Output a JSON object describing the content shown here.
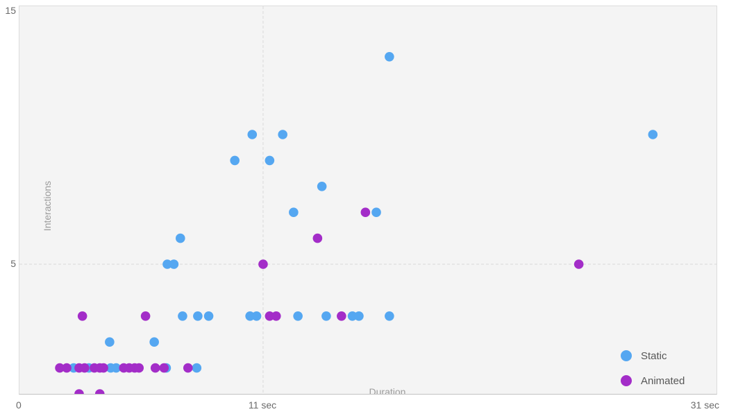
{
  "chart_data": {
    "type": "scatter",
    "xlabel": "Duration",
    "ylabel": "Interactions",
    "x_unit": "sec",
    "xlim": [
      0,
      31
    ],
    "ylim": [
      0,
      15
    ],
    "grid": {
      "style": "dashed",
      "x_values": [
        11
      ],
      "y_values": [
        5
      ]
    },
    "x_ticks": [
      {
        "value": 0,
        "label": "0"
      },
      {
        "value": 11,
        "label": "11 sec"
      },
      {
        "value": 31,
        "label": "31 sec"
      }
    ],
    "y_ticks": [
      {
        "value": 15,
        "label": "15"
      },
      {
        "value": 5,
        "label": "5"
      }
    ],
    "legend": {
      "position": "bottom-right",
      "items": [
        {
          "label": "Static",
          "color": "#55a7f1"
        },
        {
          "label": "Animated",
          "color": "#a32dc8"
        }
      ]
    },
    "series": [
      {
        "name": "Static",
        "color": "#55a7f1",
        "points": [
          [
            16.8,
            13
          ],
          [
            10.5,
            10
          ],
          [
            11.9,
            10
          ],
          [
            28.9,
            10
          ],
          [
            9.7,
            9
          ],
          [
            11.3,
            9
          ],
          [
            13.7,
            8
          ],
          [
            12.4,
            7
          ],
          [
            16.2,
            7
          ],
          [
            7.2,
            6
          ],
          [
            6.6,
            5
          ],
          [
            6.9,
            5
          ],
          [
            7.3,
            3
          ],
          [
            8.0,
            3
          ],
          [
            8.5,
            3
          ],
          [
            10.4,
            3
          ],
          [
            10.7,
            3
          ],
          [
            12.6,
            3
          ],
          [
            13.9,
            3
          ],
          [
            15.1,
            3
          ],
          [
            15.4,
            3
          ],
          [
            16.8,
            3
          ],
          [
            3.95,
            2
          ],
          [
            6.0,
            2
          ],
          [
            2.3,
            1
          ],
          [
            3.0,
            1
          ],
          [
            4.0,
            1
          ],
          [
            4.25,
            1
          ],
          [
            6.55,
            1
          ],
          [
            7.95,
            1
          ]
        ]
      },
      {
        "name": "Animated",
        "color": "#a32dc8",
        "points": [
          [
            15.7,
            7
          ],
          [
            13.5,
            6
          ],
          [
            11.0,
            5
          ],
          [
            25.5,
            5
          ],
          [
            2.7,
            3
          ],
          [
            5.6,
            3
          ],
          [
            11.3,
            3
          ],
          [
            11.6,
            3
          ],
          [
            14.6,
            3
          ],
          [
            1.66,
            1
          ],
          [
            1.98,
            1
          ],
          [
            2.55,
            1
          ],
          [
            2.8,
            1
          ],
          [
            3.25,
            1
          ],
          [
            3.5,
            1
          ],
          [
            3.67,
            1
          ],
          [
            4.6,
            1
          ],
          [
            4.85,
            1
          ],
          [
            5.1,
            1
          ],
          [
            5.3,
            1
          ],
          [
            6.05,
            1
          ],
          [
            6.45,
            1
          ],
          [
            7.55,
            1
          ],
          [
            2.55,
            0
          ],
          [
            3.5,
            0
          ]
        ]
      }
    ]
  },
  "colors": {
    "plot_background": "#f4f4f4",
    "plot_border": "#dcdcdc",
    "axis_line": "#c2c2c2",
    "gridline": "#d9d9d9",
    "tick_text": "#6a6a6a",
    "axis_title_text": "#9c9c9c",
    "legend_text": "#575757"
  }
}
